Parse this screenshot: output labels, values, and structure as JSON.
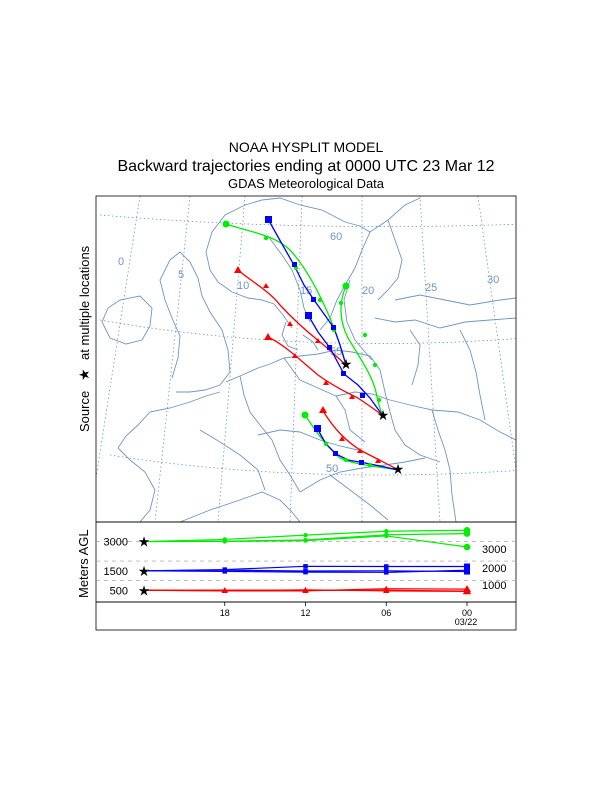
{
  "header": {
    "model": "NOAA HYSPLIT MODEL",
    "title": "Backward trajectories ending at 0000 UTC 23 Mar 12",
    "subtitle": "GDAS Meteorological Data"
  },
  "side_label": {
    "prefix": "Source",
    "suffix": "at multiple locations"
  },
  "map_labels": {
    "lon": [
      "0",
      "5",
      "10",
      "15",
      "20",
      "25",
      "30"
    ],
    "lat": [
      "60",
      "55",
      "50"
    ]
  },
  "colors": {
    "red": "#ff0000",
    "blue": "#0000ff",
    "green": "#00ee00",
    "map_lines": "#6f96c0",
    "frame": "#000000"
  },
  "chart_data": {
    "type": "line",
    "title": "Backward trajectories ending at 0000 UTC 23 Mar 12",
    "xlabel": "",
    "ylabel": "Meters AGL",
    "x_ticks": [
      "18",
      "12",
      "06",
      "00"
    ],
    "x_date_label": "03/22",
    "x_hours_before_end": [
      24,
      18,
      12,
      6,
      0
    ],
    "start_heights": [
      3000,
      1500,
      500
    ],
    "right_axis_ticks": [
      3000,
      2000,
      1000
    ],
    "series": [
      {
        "name": "Green 3000 m AGL, trajectory 1",
        "color": "green",
        "marker": "circle",
        "hours_before_end": [
          24,
          18,
          12,
          6,
          0
        ],
        "values": [
          3000,
          3110,
          3330,
          3530,
          3580
        ]
      },
      {
        "name": "Green 3000 m AGL, trajectory 2",
        "color": "green",
        "marker": "circle",
        "hours_before_end": [
          24,
          18,
          12,
          6,
          0
        ],
        "values": [
          3000,
          3020,
          3080,
          3350,
          3410
        ]
      },
      {
        "name": "Green 3000 m AGL, trajectory 3",
        "color": "green",
        "marker": "circle",
        "hours_before_end": [
          24,
          18,
          12,
          6,
          0
        ],
        "values": [
          3000,
          3010,
          3050,
          3290,
          2720
        ]
      },
      {
        "name": "Blue 1500 m AGL, trajectory 1",
        "color": "blue",
        "marker": "square",
        "hours_before_end": [
          24,
          18,
          12,
          6,
          0
        ],
        "values": [
          1500,
          1560,
          1730,
          1720,
          1720
        ]
      },
      {
        "name": "Blue 1500 m AGL, trajectory 2",
        "color": "blue",
        "marker": "square",
        "hours_before_end": [
          24,
          18,
          12,
          6,
          0
        ],
        "values": [
          1500,
          1470,
          1430,
          1420,
          1530
        ]
      },
      {
        "name": "Blue 1500 m AGL, trajectory 3",
        "color": "blue",
        "marker": "square",
        "hours_before_end": [
          24,
          18,
          12,
          6,
          0
        ],
        "values": [
          1500,
          1530,
          1490,
          1500,
          1460
        ]
      },
      {
        "name": "Red 500 m AGL, trajectory 1",
        "color": "red",
        "marker": "triangle",
        "hours_before_end": [
          24,
          18,
          12,
          6,
          0
        ],
        "values": [
          500,
          470,
          470,
          580,
          560
        ]
      },
      {
        "name": "Red 500 m AGL, trajectory 2",
        "color": "red",
        "marker": "triangle",
        "hours_before_end": [
          24,
          18,
          12,
          6,
          0
        ],
        "values": [
          500,
          480,
          520,
          470,
          440
        ]
      },
      {
        "name": "Red 500 m AGL, trajectory 3",
        "color": "red",
        "marker": "triangle",
        "hours_before_end": [
          24,
          18,
          12,
          6,
          0
        ],
        "values": [
          500,
          510,
          500,
          500,
          460
        ]
      }
    ]
  }
}
